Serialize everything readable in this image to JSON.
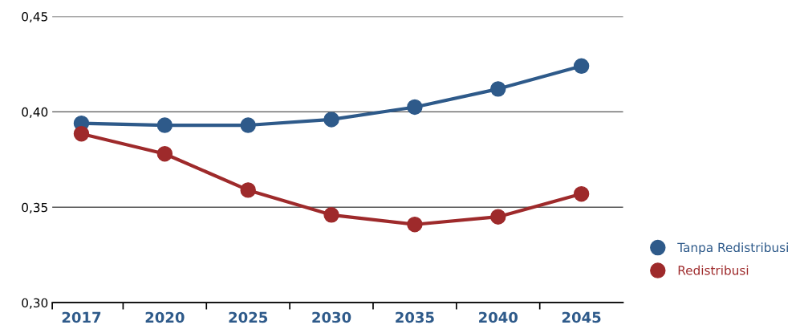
{
  "chart_data": {
    "type": "line",
    "categories": [
      "2017",
      "2020",
      "2025",
      "2030",
      "2035",
      "2040",
      "2045"
    ],
    "series": [
      {
        "name": "Tanpa Redistribusi",
        "color": "#2e5a8a",
        "values": [
          0.394,
          0.393,
          0.393,
          0.396,
          0.4025,
          0.412,
          0.424
        ]
      },
      {
        "name": "Redistribusi",
        "color": "#9e2a2b",
        "values": [
          0.3885,
          0.378,
          0.359,
          0.346,
          0.341,
          0.345,
          0.357
        ]
      }
    ],
    "ylim": [
      0.3,
      0.45
    ],
    "yticks": [
      {
        "value": 0.3,
        "label": "0,30"
      },
      {
        "value": 0.35,
        "label": "0,35"
      },
      {
        "value": 0.4,
        "label": "0,40"
      },
      {
        "value": 0.45,
        "label": "0,45"
      }
    ],
    "grid": "y",
    "legend": "bottom right",
    "marker": "circle",
    "line_style": "solid"
  }
}
